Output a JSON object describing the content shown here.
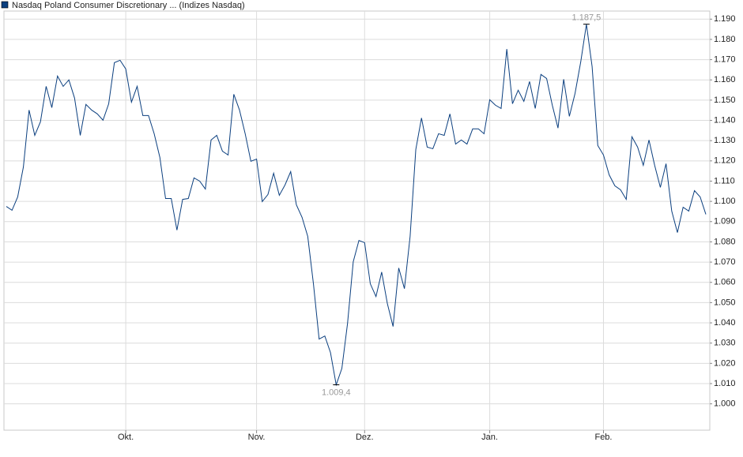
{
  "chart_data": {
    "type": "line",
    "title": "Nasdaq Poland Consumer Discretionary ... (Indizes Nasdaq)",
    "categories": [
      null,
      null,
      null,
      null,
      null,
      null,
      null,
      null,
      null,
      null,
      null,
      null,
      null,
      null,
      null,
      null,
      null,
      null,
      null,
      null,
      null,
      "Okt.",
      null,
      null,
      null,
      null,
      null,
      null,
      null,
      null,
      null,
      null,
      null,
      null,
      null,
      null,
      null,
      null,
      null,
      null,
      null,
      null,
      null,
      null,
      "Nov.",
      null,
      null,
      null,
      null,
      null,
      null,
      null,
      null,
      null,
      null,
      null,
      null,
      null,
      null,
      null,
      null,
      null,
      null,
      "Dez.",
      null,
      null,
      null,
      null,
      null,
      null,
      null,
      null,
      null,
      null,
      null,
      null,
      null,
      null,
      null,
      null,
      null,
      null,
      null,
      null,
      null,
      "Jan.",
      null,
      null,
      null,
      null,
      null,
      null,
      null,
      null,
      null,
      null,
      null,
      null,
      null,
      null,
      null,
      null,
      null,
      null,
      null,
      "Feb.",
      null,
      null,
      null,
      null,
      null,
      null,
      null,
      null,
      null,
      null,
      null,
      null,
      null,
      null,
      null,
      null,
      null,
      null
    ],
    "series": [
      {
        "name": "Nasdaq Poland Consumer Discretionary ... (Indizes Nasdaq)",
        "color": "#0b3f7f",
        "values": [
          1097.5,
          1095.6,
          1102.2,
          1117.0,
          1145.1,
          1132.6,
          1139.3,
          1156.8,
          1146.3,
          1161.9,
          1156.8,
          1160.0,
          1151.0,
          1132.6,
          1147.9,
          1145.1,
          1143.2,
          1140.1,
          1148.2,
          1168.5,
          1169.7,
          1165.4,
          1149.0,
          1156.8,
          1142.4,
          1142.4,
          1133.4,
          1121.7,
          1101.4,
          1101.4,
          1085.8,
          1101.0,
          1101.4,
          1111.6,
          1110.0,
          1106.1,
          1130.3,
          1132.6,
          1124.8,
          1122.9,
          1152.9,
          1145.1,
          1133.4,
          1119.8,
          1120.9,
          1099.9,
          1103.4,
          1113.9,
          1103.0,
          1108.1,
          1114.7,
          1098.3,
          1092.1,
          1082.7,
          1059.3,
          1032.0,
          1033.5,
          1025.3,
          1009.4,
          1017.5,
          1039.8,
          1070.2,
          1080.7,
          1079.6,
          1059.3,
          1053.0,
          1065.1,
          1049.5,
          1038.2,
          1067.1,
          1056.9,
          1082.7,
          1125.6,
          1141.2,
          1126.8,
          1126.0,
          1133.4,
          1132.6,
          1143.2,
          1128.3,
          1130.3,
          1128.3,
          1135.8,
          1135.8,
          1133.4,
          1150.2,
          1147.5,
          1145.9,
          1175.2,
          1148.2,
          1154.9,
          1149.4,
          1159.2,
          1145.9,
          1162.7,
          1160.7,
          1147.5,
          1136.2,
          1160.3,
          1142.0,
          1153.3,
          1168.9,
          1187.5,
          1166.6,
          1127.6,
          1122.9,
          1113.1,
          1107.7,
          1105.7,
          1101.0,
          1131.9,
          1126.8,
          1117.8,
          1130.3,
          1117.8,
          1106.9,
          1118.6,
          1095.2,
          1084.6,
          1097.1,
          1095.2,
          1105.3,
          1102.2,
          1093.6
        ],
        "value_labels": [
          null,
          null,
          null,
          null,
          null,
          null,
          null,
          null,
          null,
          null,
          null,
          null,
          null,
          null,
          null,
          null,
          null,
          null,
          null,
          null,
          null,
          null,
          null,
          null,
          null,
          null,
          null,
          null,
          null,
          null,
          null,
          null,
          null,
          null,
          null,
          null,
          null,
          null,
          null,
          null,
          null,
          null,
          null,
          null,
          null,
          null,
          null,
          null,
          null,
          null,
          null,
          null,
          null,
          null,
          null,
          null,
          null,
          null,
          "1.009,4",
          null,
          null,
          null,
          null,
          null,
          null,
          null,
          null,
          null,
          null,
          null,
          null,
          null,
          null,
          null,
          null,
          null,
          null,
          null,
          null,
          null,
          null,
          null,
          null,
          null,
          null,
          null,
          null,
          null,
          null,
          null,
          null,
          null,
          null,
          null,
          null,
          null,
          null,
          null,
          null,
          null,
          null,
          null,
          "1.187,5",
          null,
          null,
          null,
          null,
          null,
          null,
          null,
          null,
          null,
          null,
          null,
          null,
          null,
          null,
          null,
          null,
          null,
          null,
          null,
          null,
          null
        ]
      }
    ],
    "ylim": [
      987,
      1194
    ],
    "yticks": [
      {
        "value": 1000,
        "label": "1.000"
      },
      {
        "value": 1010,
        "label": "1.010"
      },
      {
        "value": 1020,
        "label": "1.020"
      },
      {
        "value": 1030,
        "label": "1.030"
      },
      {
        "value": 1040,
        "label": "1.040"
      },
      {
        "value": 1050,
        "label": "1.050"
      },
      {
        "value": 1060,
        "label": "1.060"
      },
      {
        "value": 1070,
        "label": "1.070"
      },
      {
        "value": 1080,
        "label": "1.080"
      },
      {
        "value": 1090,
        "label": "1.090"
      },
      {
        "value": 1100,
        "label": "1.100"
      },
      {
        "value": 1110,
        "label": "1.110"
      },
      {
        "value": 1120,
        "label": "1.120"
      },
      {
        "value": 1130,
        "label": "1.130"
      },
      {
        "value": 1140,
        "label": "1.140"
      },
      {
        "value": 1150,
        "label": "1.150"
      },
      {
        "value": 1160,
        "label": "1.160"
      },
      {
        "value": 1170,
        "label": "1.170"
      },
      {
        "value": 1180,
        "label": "1.180"
      },
      {
        "value": 1190,
        "label": "1.190"
      }
    ],
    "grid": true,
    "legend": "top-left"
  }
}
